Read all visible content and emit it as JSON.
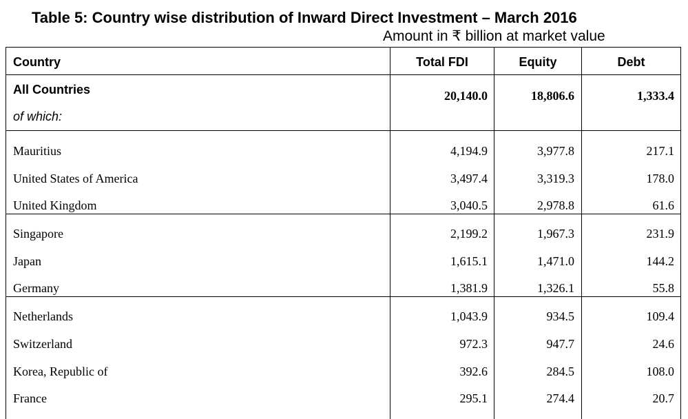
{
  "title": "Table 5: Country wise distribution of Inward Direct Investment – March 2016",
  "subtitle": "Amount in ₹ billion at market value",
  "headers": {
    "country": "Country",
    "total_fdi": "Total FDI",
    "equity": "Equity",
    "debt": "Debt"
  },
  "all_countries": {
    "label": "All Countries",
    "sublabel": "of which:",
    "total_fdi": "20,140.0",
    "equity": "18,806.6",
    "debt": "1,333.4"
  },
  "rows": [
    {
      "country": "Mauritius",
      "total_fdi": "4,194.9",
      "equity": "3,977.8",
      "debt": "217.1"
    },
    {
      "country": "United States of America",
      "total_fdi": "3,497.4",
      "equity": "3,319.3",
      "debt": "178.0"
    },
    {
      "country": "United Kingdom",
      "total_fdi": "3,040.5",
      "equity": "2,978.8",
      "debt": "61.6"
    },
    {
      "country": "Singapore",
      "total_fdi": "2,199.2",
      "equity": "1,967.3",
      "debt": "231.9"
    },
    {
      "country": "Japan",
      "total_fdi": "1,615.1",
      "equity": "1,471.0",
      "debt": "144.2"
    },
    {
      "country": "Germany",
      "total_fdi": "1,381.9",
      "equity": "1,326.1",
      "debt": "55.8"
    },
    {
      "country": "Netherlands",
      "total_fdi": "1,043.9",
      "equity": "934.5",
      "debt": "109.4"
    },
    {
      "country": "Switzerland",
      "total_fdi": "972.3",
      "equity": "947.7",
      "debt": "24.6"
    },
    {
      "country": "Korea, Republic of",
      "total_fdi": "392.6",
      "equity": "284.5",
      "debt": "108.0"
    },
    {
      "country": "France",
      "total_fdi": "295.1",
      "equity": "274.4",
      "debt": "20.7"
    }
  ]
}
